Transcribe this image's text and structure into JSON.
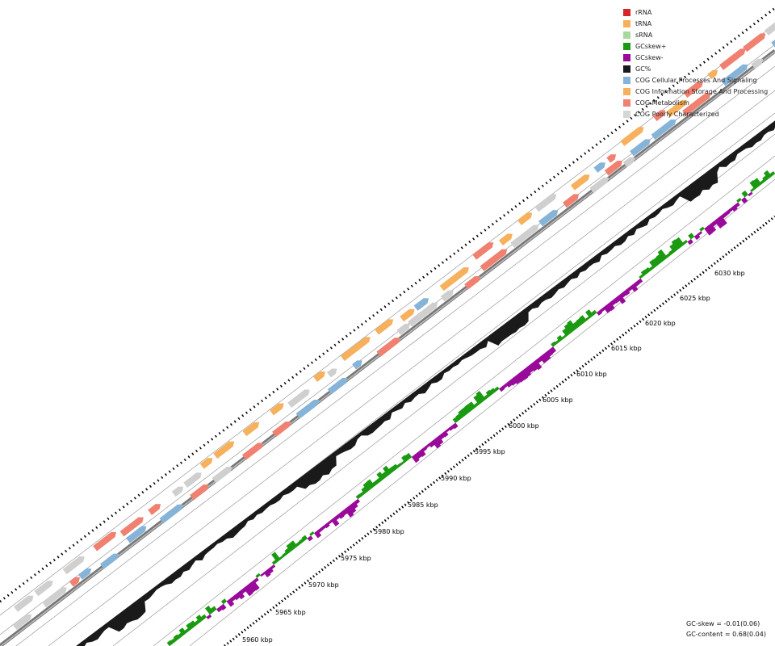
{
  "legend": {
    "items": [
      {
        "label": "rRNA",
        "color": "#d62728"
      },
      {
        "label": "tRNA",
        "color": "#f7b05b"
      },
      {
        "label": "sRNA",
        "color": "#a8d89a"
      },
      {
        "label": "GCskew+",
        "color": "#1a9a10"
      },
      {
        "label": "GCskew-",
        "color": "#9a0a9a"
      },
      {
        "label": "GC%",
        "color": "#1a1a1a"
      },
      {
        "label": "COG Cellular Processes And Signaling",
        "color": "#86b3d8"
      },
      {
        "label": "COG Information Storage And Processing",
        "color": "#f7b05b"
      },
      {
        "label": "COG Metabolism",
        "color": "#f08070"
      },
      {
        "label": "COG Poorly Characterized",
        "color": "#d6d6d6"
      }
    ]
  },
  "axis": {
    "ticks": [
      "5960 kbp",
      "5965 kbp",
      "5970 kbp",
      "5975 kbp",
      "5980 kbp",
      "5985 kbp",
      "5990 kbp",
      "5995 kbp",
      "6000 kbp",
      "6005 kbp",
      "6010 kbp",
      "6015 kbp",
      "6020 kbp",
      "6025 kbp",
      "6030 kbp"
    ]
  },
  "stats": {
    "gc_skew": "GC-skew = -0.01(0.06)",
    "gc_content": "GC-content = 0.68(0.04)"
  },
  "colors": {
    "skew_pos": "#1a9a10",
    "skew_neg": "#9a0a9a",
    "gc": "#1a1a1a",
    "cog_cell": "#86b3d8",
    "cog_info": "#f7b05b",
    "cog_meta": "#f08070",
    "cog_poor": "#cfcfcf",
    "trna": "#f7b05b"
  }
}
